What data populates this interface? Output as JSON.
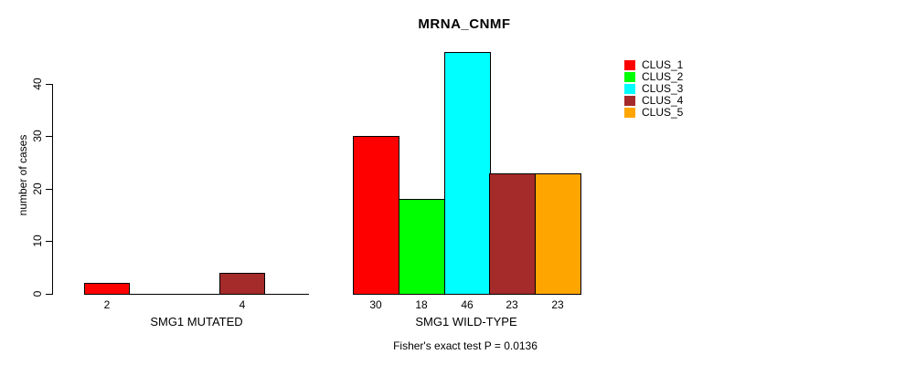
{
  "chart_data": {
    "type": "bar",
    "title": "MRNA_CNMF",
    "ylabel": "number of cases",
    "yticks": [
      0,
      10,
      20,
      30,
      40
    ],
    "ylim": [
      0,
      46
    ],
    "grid": false,
    "legend_position": "top-right",
    "categories": [
      "CLUS_1",
      "CLUS_2",
      "CLUS_3",
      "CLUS_4",
      "CLUS_5"
    ],
    "cluster_colors": [
      "#FF0000",
      "#00FF00",
      "#00FFFF",
      "#A52A2A",
      "#FFA500"
    ],
    "groups": [
      {
        "label": "SMG1 MUTATED",
        "values": [
          2,
          0,
          0,
          4,
          0
        ],
        "bar_labels": [
          "2",
          "",
          "",
          "4",
          ""
        ]
      },
      {
        "label": "SMG1 WILD-TYPE",
        "values": [
          30,
          18,
          46,
          23,
          23
        ],
        "bar_labels": [
          "30",
          "18",
          "46",
          "23",
          "23"
        ]
      }
    ],
    "legend": [
      {
        "label": "CLUS_1",
        "color": "#FF0000"
      },
      {
        "label": "CLUS_2",
        "color": "#00FF00"
      },
      {
        "label": "CLUS_3",
        "color": "#00FFFF"
      },
      {
        "label": "CLUS_4",
        "color": "#A52A2A"
      },
      {
        "label": "CLUS_5",
        "color": "#FFA500"
      }
    ],
    "footnote": "Fisher's exact test P = 0.0136"
  }
}
